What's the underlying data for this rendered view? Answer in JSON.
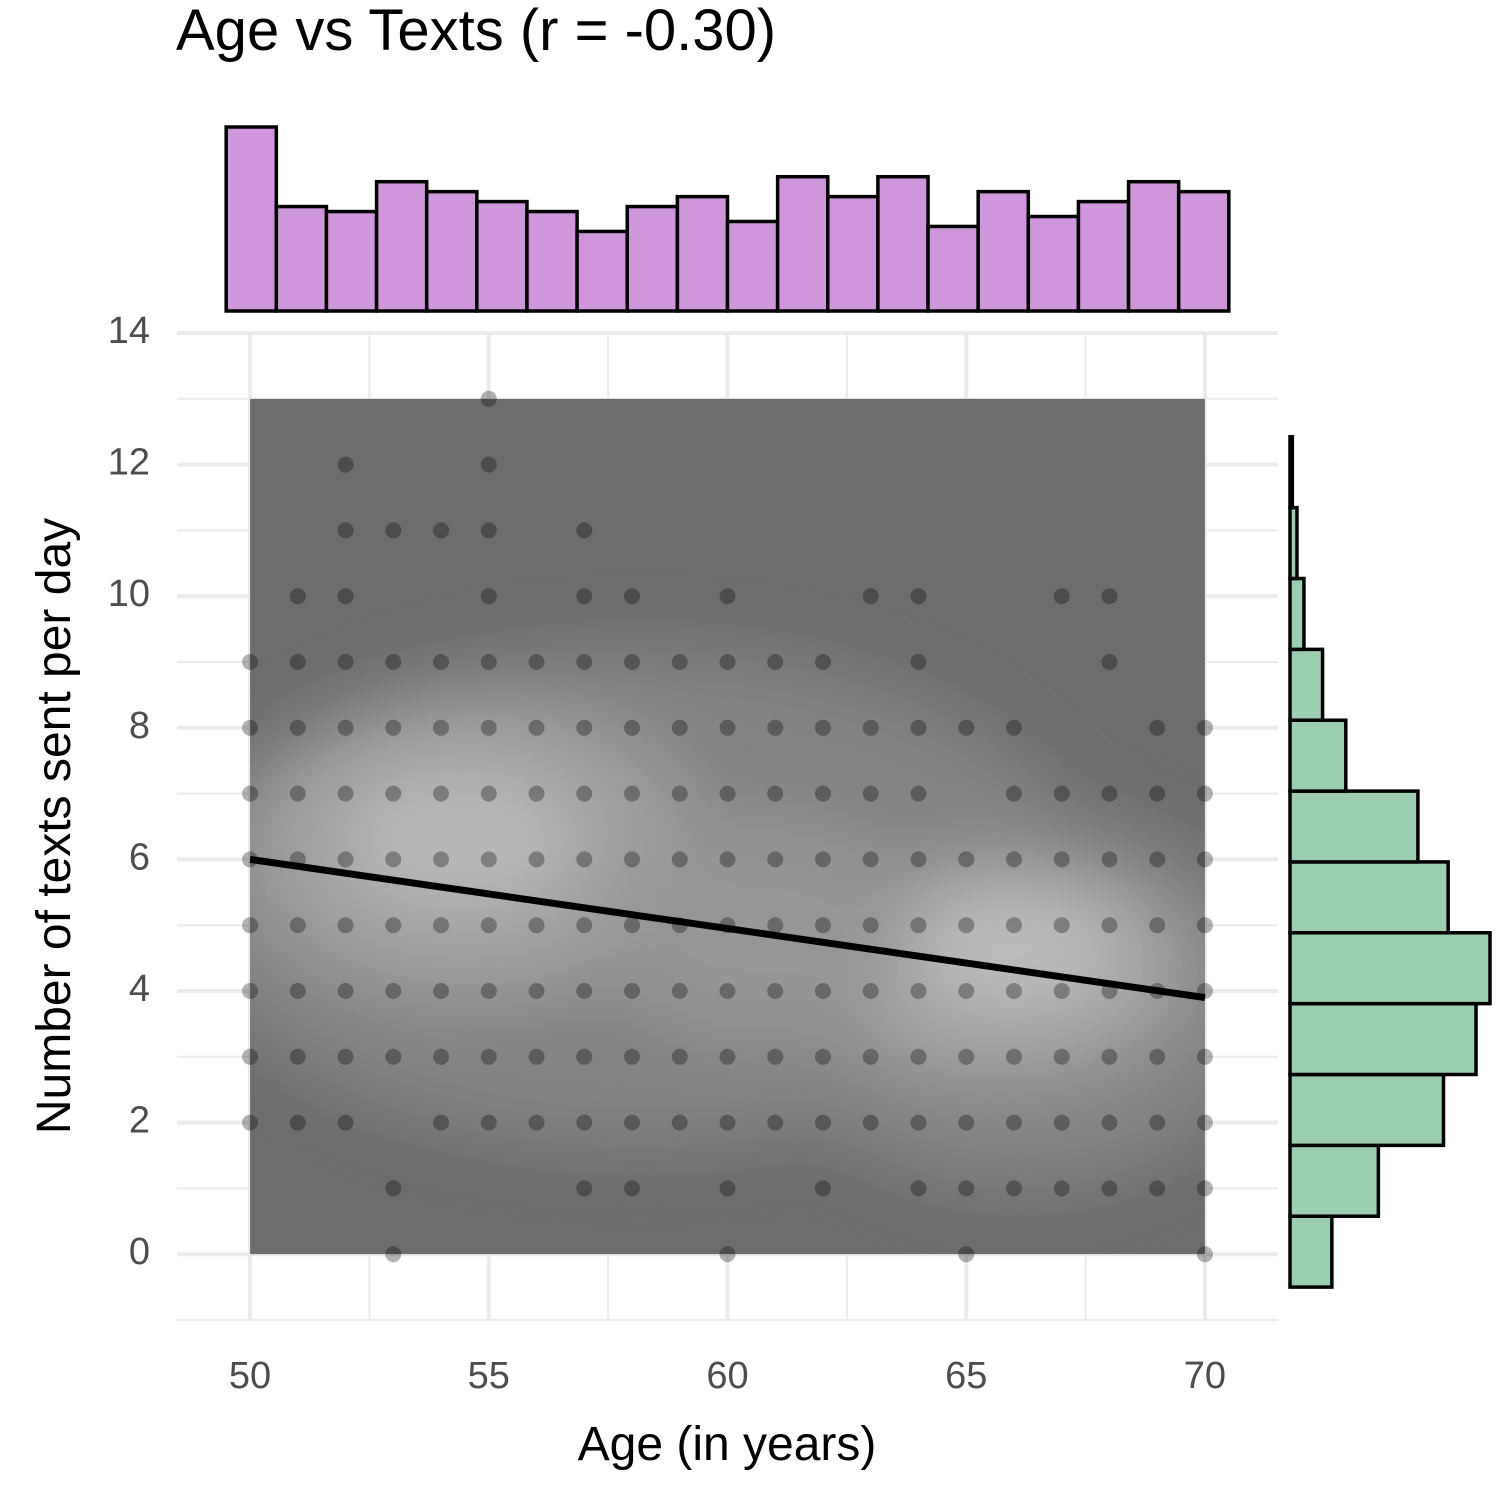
{
  "chart_data": [
    {
      "type": "scatter",
      "title": "Age vs Texts (r = -0.30)",
      "xlabel": "Age (in years)",
      "ylabel": "Number of texts sent per day",
      "x": [
        55,
        52,
        55,
        52,
        53,
        54,
        55,
        57,
        51,
        52,
        55,
        57,
        58,
        60,
        63,
        64,
        67,
        68,
        50,
        51,
        52,
        53,
        54,
        55,
        56,
        57,
        58,
        59,
        60,
        61,
        62,
        64,
        68,
        50,
        51,
        52,
        53,
        54,
        55,
        56,
        57,
        58,
        59,
        60,
        61,
        62,
        63,
        64,
        65,
        66,
        69,
        70,
        50,
        51,
        52,
        53,
        54,
        55,
        56,
        57,
        58,
        59,
        60,
        61,
        62,
        63,
        64,
        66,
        67,
        68,
        69,
        70,
        50,
        51,
        52,
        53,
        54,
        55,
        56,
        57,
        58,
        59,
        60,
        61,
        62,
        63,
        64,
        65,
        66,
        67,
        68,
        69,
        70,
        50,
        51,
        52,
        53,
        54,
        55,
        56,
        57,
        58,
        59,
        60,
        61,
        62,
        63,
        64,
        65,
        66,
        67,
        68,
        69,
        70,
        50,
        51,
        52,
        53,
        54,
        55,
        56,
        57,
        58,
        59,
        60,
        61,
        62,
        63,
        64,
        65,
        66,
        67,
        68,
        69,
        70,
        50,
        51,
        52,
        53,
        54,
        55,
        56,
        57,
        58,
        59,
        60,
        61,
        62,
        63,
        64,
        65,
        66,
        67,
        68,
        69,
        70,
        50,
        51,
        52,
        54,
        55,
        56,
        57,
        58,
        59,
        60,
        61,
        62,
        63,
        64,
        65,
        66,
        67,
        68,
        69,
        70,
        53,
        57,
        58,
        60,
        62,
        64,
        65,
        66,
        67,
        68,
        69,
        70,
        53,
        60,
        65,
        70
      ],
      "y": [
        13,
        12,
        12,
        11,
        11,
        11,
        11,
        11,
        10,
        10,
        10,
        10,
        10,
        10,
        10,
        10,
        10,
        10,
        9,
        9,
        9,
        9,
        9,
        9,
        9,
        9,
        9,
        9,
        9,
        9,
        9,
        9,
        9,
        8,
        8,
        8,
        8,
        8,
        8,
        8,
        8,
        8,
        8,
        8,
        8,
        8,
        8,
        8,
        8,
        8,
        8,
        8,
        7,
        7,
        7,
        7,
        7,
        7,
        7,
        7,
        7,
        7,
        7,
        7,
        7,
        7,
        7,
        7,
        7,
        7,
        7,
        7,
        6,
        6,
        6,
        6,
        6,
        6,
        6,
        6,
        6,
        6,
        6,
        6,
        6,
        6,
        6,
        6,
        6,
        6,
        6,
        6,
        6,
        5,
        5,
        5,
        5,
        5,
        5,
        5,
        5,
        5,
        5,
        5,
        5,
        5,
        5,
        5,
        5,
        5,
        5,
        5,
        5,
        5,
        4,
        4,
        4,
        4,
        4,
        4,
        4,
        4,
        4,
        4,
        4,
        4,
        4,
        4,
        4,
        4,
        4,
        4,
        4,
        4,
        4,
        3,
        3,
        3,
        3,
        3,
        3,
        3,
        3,
        3,
        3,
        3,
        3,
        3,
        3,
        3,
        3,
        3,
        3,
        3,
        3,
        3,
        2,
        2,
        2,
        2,
        2,
        2,
        2,
        2,
        2,
        2,
        2,
        2,
        2,
        2,
        2,
        2,
        2,
        2,
        2,
        2,
        1,
        1,
        1,
        1,
        1,
        1,
        1,
        1,
        1,
        1,
        1,
        1,
        0,
        0,
        0,
        0
      ],
      "xlim": [
        48.47,
        71.53
      ],
      "ylim": [
        -1,
        14
      ],
      "xticks": [
        50,
        55,
        60,
        65,
        70
      ],
      "yticks": [
        0,
        2,
        4,
        6,
        8,
        10,
        12,
        14
      ],
      "xminor_ticks": [
        52.5,
        57.5,
        62.5,
        67.5
      ],
      "yminor_ticks": [
        -1,
        1,
        3,
        5,
        7,
        9,
        11,
        13
      ],
      "grid": true,
      "color": "#000000",
      "density": {
        "xlim": [
          50,
          70
        ],
        "ylim": [
          0,
          13
        ]
      },
      "fit": {
        "x": [
          50,
          70
        ],
        "y": [
          6.0,
          3.9
        ]
      }
    },
    {
      "type": "histogram",
      "orientation": "vertical",
      "color": "#cf96dc",
      "bins": [
        49.5,
        50.55,
        51.6,
        52.65,
        53.7,
        54.75,
        55.8,
        56.85,
        57.9,
        58.95,
        60,
        61.05,
        62.1,
        63.15,
        64.2,
        65.25,
        66.3,
        67.35,
        68.4,
        69.45,
        70.5
      ],
      "counts": [
        37,
        21,
        20,
        26,
        24,
        22,
        20,
        16,
        21,
        23,
        18,
        27,
        23,
        27,
        17,
        24,
        19,
        22,
        26,
        24
      ]
    },
    {
      "type": "histogram",
      "orientation": "horizontal",
      "color": "#9bcdaf",
      "bins": [
        -0.5,
        0.577,
        1.654,
        2.731,
        3.808,
        4.885,
        5.962,
        7.038,
        8.115,
        9.192,
        10.269,
        11.346,
        12.423,
        13.5
      ],
      "counts": [
        18,
        38,
        66,
        80,
        86,
        68,
        55,
        24,
        14,
        6,
        3,
        1,
        0
      ]
    }
  ]
}
